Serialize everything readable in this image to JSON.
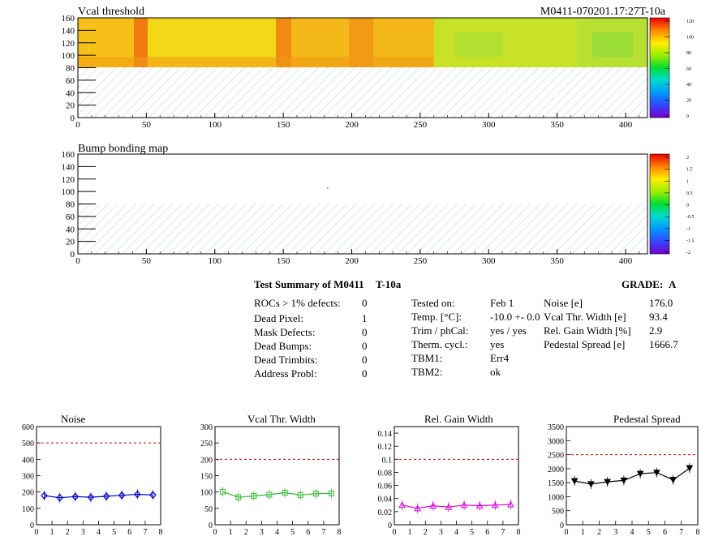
{
  "maps": [
    {
      "title": "Vcal threshold",
      "corner_label": "M0411-070201.17:27T-10a",
      "x_ticks": [
        "0",
        "50",
        "100",
        "150",
        "200",
        "250",
        "300",
        "350",
        "400"
      ],
      "y_ticks": [
        "0",
        "20",
        "40",
        "60",
        "80",
        "100",
        "120",
        "140",
        "160"
      ],
      "scale_ticks": [
        "0",
        "20",
        "40",
        "60",
        "80",
        "100",
        "120"
      ]
    },
    {
      "title": "Bump bonding map",
      "x_ticks": [
        "0",
        "50",
        "100",
        "150",
        "200",
        "250",
        "300",
        "350",
        "400"
      ],
      "y_ticks": [
        "0",
        "20",
        "40",
        "60",
        "80",
        "100",
        "120",
        "140",
        "160"
      ],
      "scale_ticks": [
        "-2",
        "-1.5",
        "-1",
        "-0.5",
        "0",
        "0.5",
        "1",
        "1.5",
        "2"
      ]
    }
  ],
  "summary": {
    "title": "Test Summary of M0411",
    "temp_tag": "T-10a",
    "grade_label": "GRADE:",
    "grade": "A",
    "defects": [
      {
        "label": "ROCs > 1% defects:",
        "value": "0"
      },
      {
        "label": "Dead Pixel:",
        "value": "1"
      },
      {
        "label": "Mask Defects:",
        "value": "0"
      },
      {
        "label": "Dead Bumps:",
        "value": "0"
      },
      {
        "label": "Dead Trimbits:",
        "value": "0"
      },
      {
        "label": "Address Probl:",
        "value": "0"
      }
    ],
    "conditions": [
      {
        "label": "Tested on:",
        "value": "Feb 1"
      },
      {
        "label": "Temp. [°C]:",
        "value": "-10.0 +- 0.0"
      },
      {
        "label": "Trim / phCal:",
        "value": "yes / yes"
      },
      {
        "label": "Therm. cycl.:",
        "value": "yes"
      },
      {
        "label": "TBM1:",
        "value": "Err4"
      },
      {
        "label": "TBM2:",
        "value": "ok"
      }
    ],
    "results": [
      {
        "label": "Noise [e]",
        "value": "176.0"
      },
      {
        "label": "Vcal Thr. Width [e]",
        "value": "93.4"
      },
      {
        "label": "Rel. Gain Width [%]",
        "value": "2.9"
      },
      {
        "label": "Pedestal Spread [e]",
        "value": "1666.7"
      }
    ]
  },
  "chart_data": [
    {
      "type": "line",
      "title": "Noise",
      "x": [
        0.5,
        1.5,
        2.5,
        3.5,
        4.5,
        5.5,
        6.5,
        7.5
      ],
      "values": [
        178,
        165,
        172,
        168,
        174,
        180,
        186,
        182
      ],
      "ylim": [
        0,
        600
      ],
      "y_ticks": [
        "0",
        "100",
        "200",
        "300",
        "400",
        "500",
        "600"
      ],
      "xlim": [
        0,
        8
      ],
      "x_ticks": [
        "0",
        "1",
        "2",
        "3",
        "4",
        "5",
        "6",
        "7",
        "8"
      ],
      "threshold": 500,
      "color": "#0000cc",
      "marker": "diamond"
    },
    {
      "type": "line",
      "title": "Vcal Thr. Width",
      "x": [
        0.5,
        1.5,
        2.5,
        3.5,
        4.5,
        5.5,
        6.5,
        7.5
      ],
      "values": [
        101,
        84,
        88,
        92,
        98,
        91,
        95,
        96
      ],
      "ylim": [
        0,
        300
      ],
      "y_ticks": [
        "0",
        "50",
        "100",
        "150",
        "200",
        "250",
        "300"
      ],
      "xlim": [
        0,
        8
      ],
      "x_ticks": [
        "0",
        "1",
        "2",
        "3",
        "4",
        "5",
        "6",
        "7",
        "8"
      ],
      "threshold": 200,
      "color": "#33bb33",
      "marker": "square"
    },
    {
      "type": "line",
      "title": "Rel. Gain Width",
      "x": [
        0.5,
        1.5,
        2.5,
        3.5,
        4.5,
        5.5,
        6.5,
        7.5
      ],
      "values": [
        0.03,
        0.025,
        0.029,
        0.027,
        0.03,
        0.029,
        0.03,
        0.031
      ],
      "ylim": [
        0,
        0.15
      ],
      "y_ticks": [
        "0",
        "0.02",
        "0.04",
        "0.06",
        "0.08",
        "0.1",
        "0.12",
        "0.14"
      ],
      "y_tick_values": [
        0,
        0.02,
        0.04,
        0.06,
        0.08,
        0.1,
        0.12,
        0.14
      ],
      "xlim": [
        0,
        8
      ],
      "x_ticks": [
        "0",
        "1",
        "2",
        "3",
        "4",
        "5",
        "6",
        "7",
        "8"
      ],
      "threshold": 0.1,
      "color": "#dd00dd",
      "marker": "triangle-up"
    },
    {
      "type": "line",
      "title": "Pedestal Spread",
      "x": [
        0.5,
        1.5,
        2.5,
        3.5,
        4.5,
        5.5,
        6.5,
        7.5
      ],
      "values": [
        1560,
        1450,
        1530,
        1580,
        1820,
        1860,
        1600,
        2020
      ],
      "ylim": [
        0,
        3500
      ],
      "y_ticks": [
        "0",
        "500",
        "1000",
        "1500",
        "2000",
        "2500",
        "3000",
        "3500"
      ],
      "xlim": [
        0,
        8
      ],
      "x_ticks": [
        "0",
        "1",
        "2",
        "3",
        "4",
        "5",
        "6",
        "7",
        "8"
      ],
      "threshold": 2500,
      "color": "#000000",
      "marker": "triangle-down"
    }
  ]
}
